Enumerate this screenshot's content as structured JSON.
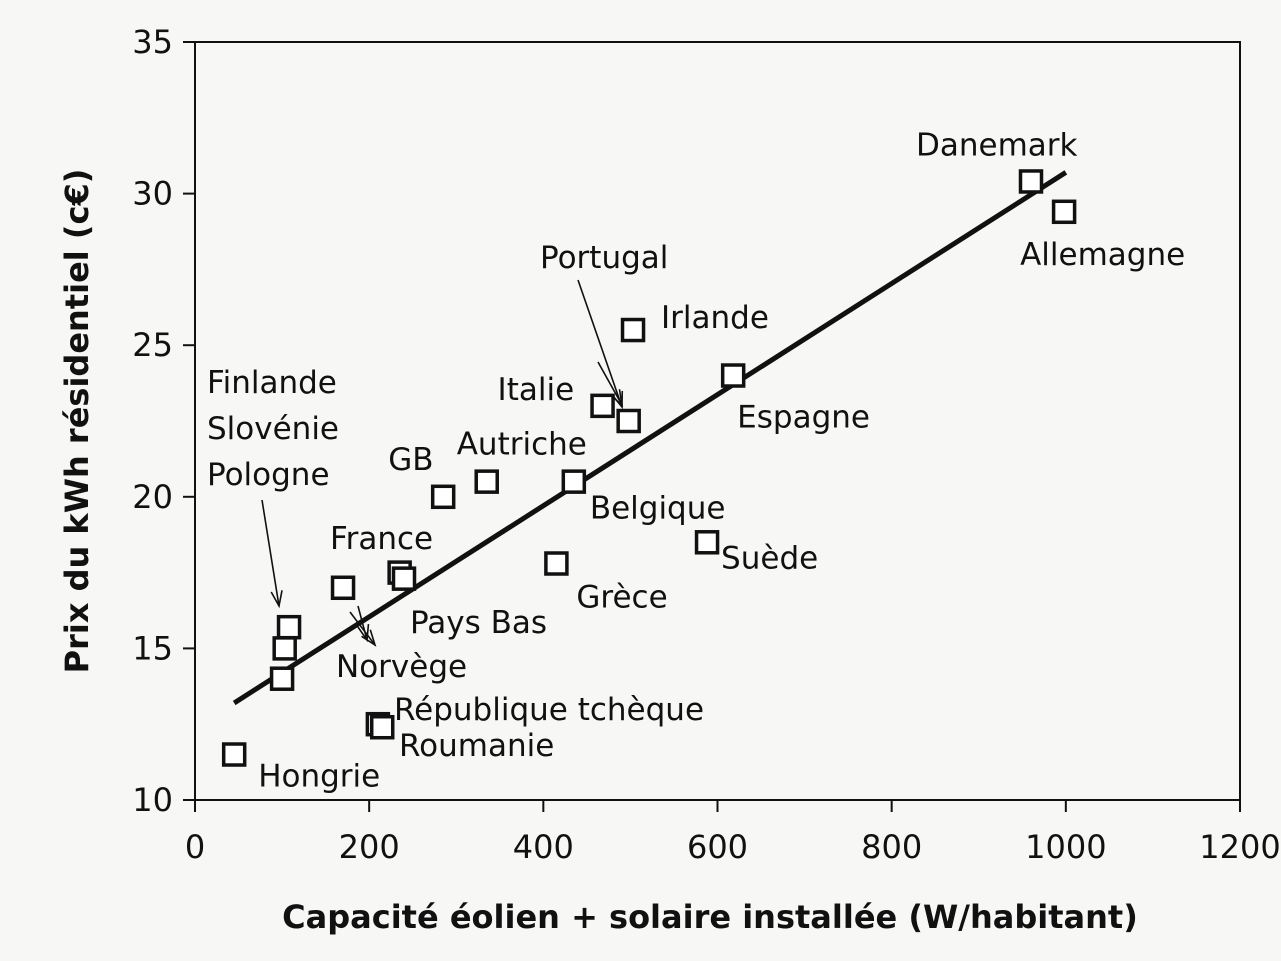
{
  "chart_data": {
    "type": "scatter",
    "title": "",
    "xlabel": "Capacité éolien + solaire installée (W/habitant)",
    "ylabel": "Prix du kWh résidentiel (c€)",
    "xlim": [
      0,
      1200
    ],
    "ylim": [
      10,
      35
    ],
    "xticks": [
      0,
      200,
      400,
      600,
      800,
      1000,
      1200
    ],
    "yticks": [
      10,
      15,
      20,
      25,
      30,
      35
    ],
    "grid": false,
    "legend": "none",
    "marker": "hollow-square",
    "points": [
      {
        "label": "Hongrie",
        "x": 45,
        "y": 11.5
      },
      {
        "label": "",
        "x": 100,
        "y": 14.0
      },
      {
        "label": "",
        "x": 103,
        "y": 15.0
      },
      {
        "label": "",
        "x": 108,
        "y": 15.7
      },
      {
        "label": "",
        "x": 170,
        "y": 17.0
      },
      {
        "label": "",
        "x": 235,
        "y": 17.5
      },
      {
        "label": "",
        "x": 240,
        "y": 17.3
      },
      {
        "label": "",
        "x": 210,
        "y": 12.5
      },
      {
        "label": "",
        "x": 215,
        "y": 12.4
      },
      {
        "label": "GB",
        "x": 285,
        "y": 20.0
      },
      {
        "label": "Autriche",
        "x": 335,
        "y": 20.5
      },
      {
        "label": "Belgique",
        "x": 435,
        "y": 20.5
      },
      {
        "label": "Grèce",
        "x": 415,
        "y": 17.8
      },
      {
        "label": "Italie",
        "x": 468,
        "y": 23.0
      },
      {
        "label": "",
        "x": 498,
        "y": 22.5
      },
      {
        "label": "Irlande",
        "x": 503,
        "y": 25.5
      },
      {
        "label": "Suède",
        "x": 588,
        "y": 18.5
      },
      {
        "label": "Espagne",
        "x": 618,
        "y": 24.0
      },
      {
        "label": "Danemark",
        "x": 960,
        "y": 30.4
      },
      {
        "label": "Allemagne",
        "x": 998,
        "y": 29.4
      }
    ],
    "annotations": [
      {
        "text": "Finlande\nSlovénie\nPologne"
      },
      {
        "text": "France"
      },
      {
        "text": "Pays Bas"
      },
      {
        "text": "Norvège"
      },
      {
        "text": "République tchèque"
      },
      {
        "text": "Roumanie"
      },
      {
        "text": "Portugal"
      }
    ],
    "trendline": {
      "x": [
        45,
        1000
      ],
      "y": [
        13.2,
        30.7
      ]
    }
  }
}
